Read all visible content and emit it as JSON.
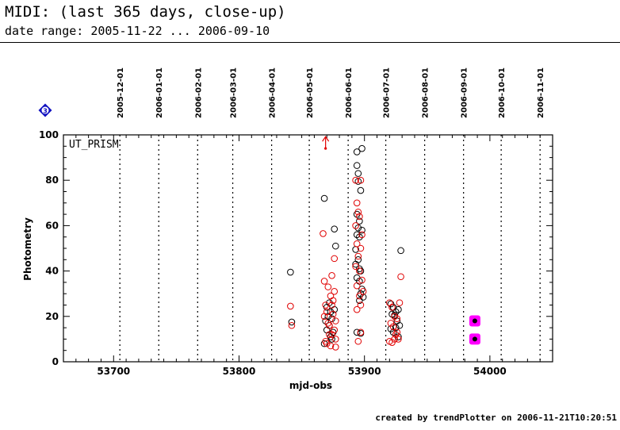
{
  "header": {
    "title": "MIDI: (last 365 days, close-up)",
    "subtitle": "date range: 2005-11-22 ... 2006-09-10"
  },
  "footer": {
    "text": "created by trendPlotter on 2006-11-21T10:20:51"
  },
  "badge": {
    "label": "3"
  },
  "colors": {
    "black": "#000000",
    "red": "#e00000",
    "magenta": "#ff00ff",
    "badge_blue": "#1010c0"
  },
  "chart_data": {
    "type": "scatter",
    "panel_label": "UT_PRISM",
    "xlabel": "mjd-obs",
    "ylabel": "Photometry",
    "xlim": [
      53660,
      54050
    ],
    "ylim": [
      0,
      100
    ],
    "xticks": [
      53700,
      53800,
      53900,
      54000
    ],
    "yticks": [
      0,
      20,
      40,
      60,
      80,
      100
    ],
    "grid": false,
    "month_markers": [
      {
        "label": "2005-12-01",
        "x": 53705
      },
      {
        "label": "2006-01-01",
        "x": 53736
      },
      {
        "label": "2006-02-01",
        "x": 53767
      },
      {
        "label": "2006-03-01",
        "x": 53795
      },
      {
        "label": "2006-04-01",
        "x": 53826
      },
      {
        "label": "2006-05-01",
        "x": 53856
      },
      {
        "label": "2006-06-01",
        "x": 53887
      },
      {
        "label": "2006-07-01",
        "x": 53917
      },
      {
        "label": "2006-08-01",
        "x": 53948
      },
      {
        "label": "2006-09-01",
        "x": 53979
      },
      {
        "label": "2006-10-01",
        "x": 54009
      },
      {
        "label": "2006-11-01",
        "x": 54040
      }
    ],
    "series": [
      {
        "color": "#000000",
        "marker": "open-circle",
        "points": [
          [
            53841,
            39.5
          ],
          [
            53842,
            17.5
          ],
          [
            53868,
            72
          ],
          [
            53869,
            18
          ],
          [
            53870,
            24
          ],
          [
            53871,
            20
          ],
          [
            53872,
            16
          ],
          [
            53873,
            22
          ],
          [
            53874,
            10
          ],
          [
            53875,
            13
          ],
          [
            53876,
            58.5
          ],
          [
            53877,
            51
          ],
          [
            53868,
            8
          ],
          [
            53870,
            14
          ],
          [
            53872,
            26
          ],
          [
            53874,
            19
          ],
          [
            53876,
            23
          ],
          [
            53873,
            11
          ],
          [
            53894,
            92.5
          ],
          [
            53898,
            94
          ],
          [
            53894,
            86.5
          ],
          [
            53895,
            83
          ],
          [
            53895,
            79.5
          ],
          [
            53897,
            75.5
          ],
          [
            53894,
            65
          ],
          [
            53896,
            62
          ],
          [
            53895,
            59
          ],
          [
            53898,
            58
          ],
          [
            53894,
            56
          ],
          [
            53896,
            55
          ],
          [
            53893,
            49.5
          ],
          [
            53895,
            45
          ],
          [
            53893,
            43
          ],
          [
            53896,
            41
          ],
          [
            53897,
            40
          ],
          [
            53894,
            37
          ],
          [
            53896,
            35.5
          ],
          [
            53898,
            32
          ],
          [
            53897,
            30
          ],
          [
            53899,
            28.5
          ],
          [
            53896,
            27
          ],
          [
            53894,
            13
          ],
          [
            53897,
            12.5
          ],
          [
            53921,
            25.5
          ],
          [
            53923,
            24
          ],
          [
            53925,
            22
          ],
          [
            53927,
            23
          ],
          [
            53929,
            49
          ],
          [
            53922,
            21
          ],
          [
            53924,
            20.5
          ],
          [
            53926,
            18
          ],
          [
            53928,
            16
          ],
          [
            53921,
            14.5
          ],
          [
            53923,
            13
          ],
          [
            53925,
            15
          ],
          [
            53927,
            11
          ]
        ]
      },
      {
        "color": "#e00000",
        "marker": "open-circle",
        "points": [
          [
            53841,
            24.5
          ],
          [
            53842,
            16
          ],
          [
            53867,
            56.5
          ],
          [
            53868,
            35.5
          ],
          [
            53868,
            20
          ],
          [
            53869,
            25
          ],
          [
            53870,
            22
          ],
          [
            53871,
            17
          ],
          [
            53872,
            12
          ],
          [
            53869,
            9
          ],
          [
            53876,
            45.5
          ],
          [
            53874,
            38
          ],
          [
            53876,
            31
          ],
          [
            53875,
            27
          ],
          [
            53871,
            33
          ],
          [
            53873,
            29
          ],
          [
            53874,
            25
          ],
          [
            53875,
            21
          ],
          [
            53877,
            18
          ],
          [
            53876,
            14
          ],
          [
            53877,
            10
          ],
          [
            53873,
            7
          ],
          [
            53877,
            6.5
          ],
          [
            53870,
            8
          ],
          [
            53872,
            16
          ],
          [
            53874,
            12
          ],
          [
            53893,
            80
          ],
          [
            53897,
            80
          ],
          [
            53894,
            70
          ],
          [
            53895,
            66
          ],
          [
            53896,
            64
          ],
          [
            53893,
            60
          ],
          [
            53898,
            56
          ],
          [
            53894,
            52
          ],
          [
            53897,
            50
          ],
          [
            53895,
            46.5
          ],
          [
            53893,
            42
          ],
          [
            53896,
            40
          ],
          [
            53898,
            36
          ],
          [
            53894,
            33.5
          ],
          [
            53899,
            31
          ],
          [
            53896,
            29
          ],
          [
            53897,
            25
          ],
          [
            53894,
            23
          ],
          [
            53895,
            9
          ],
          [
            53897,
            13
          ],
          [
            53920,
            26
          ],
          [
            53922,
            24
          ],
          [
            53924,
            20
          ],
          [
            53926,
            19
          ],
          [
            53928,
            26
          ],
          [
            53929,
            37.5
          ],
          [
            53921,
            17
          ],
          [
            53923,
            15.5
          ],
          [
            53925,
            12
          ],
          [
            53927,
            10
          ],
          [
            53920,
            9
          ],
          [
            53922,
            8.5
          ],
          [
            53924,
            10
          ],
          [
            53926,
            13
          ]
        ]
      },
      {
        "color": "#ff00ff",
        "marker": "filled-square-dot",
        "points": [
          [
            53988,
            18
          ],
          [
            53988,
            10
          ]
        ]
      }
    ],
    "annotations": [
      {
        "type": "arrow-up",
        "color": "#e00000",
        "x": 53869,
        "y": 94
      }
    ]
  }
}
